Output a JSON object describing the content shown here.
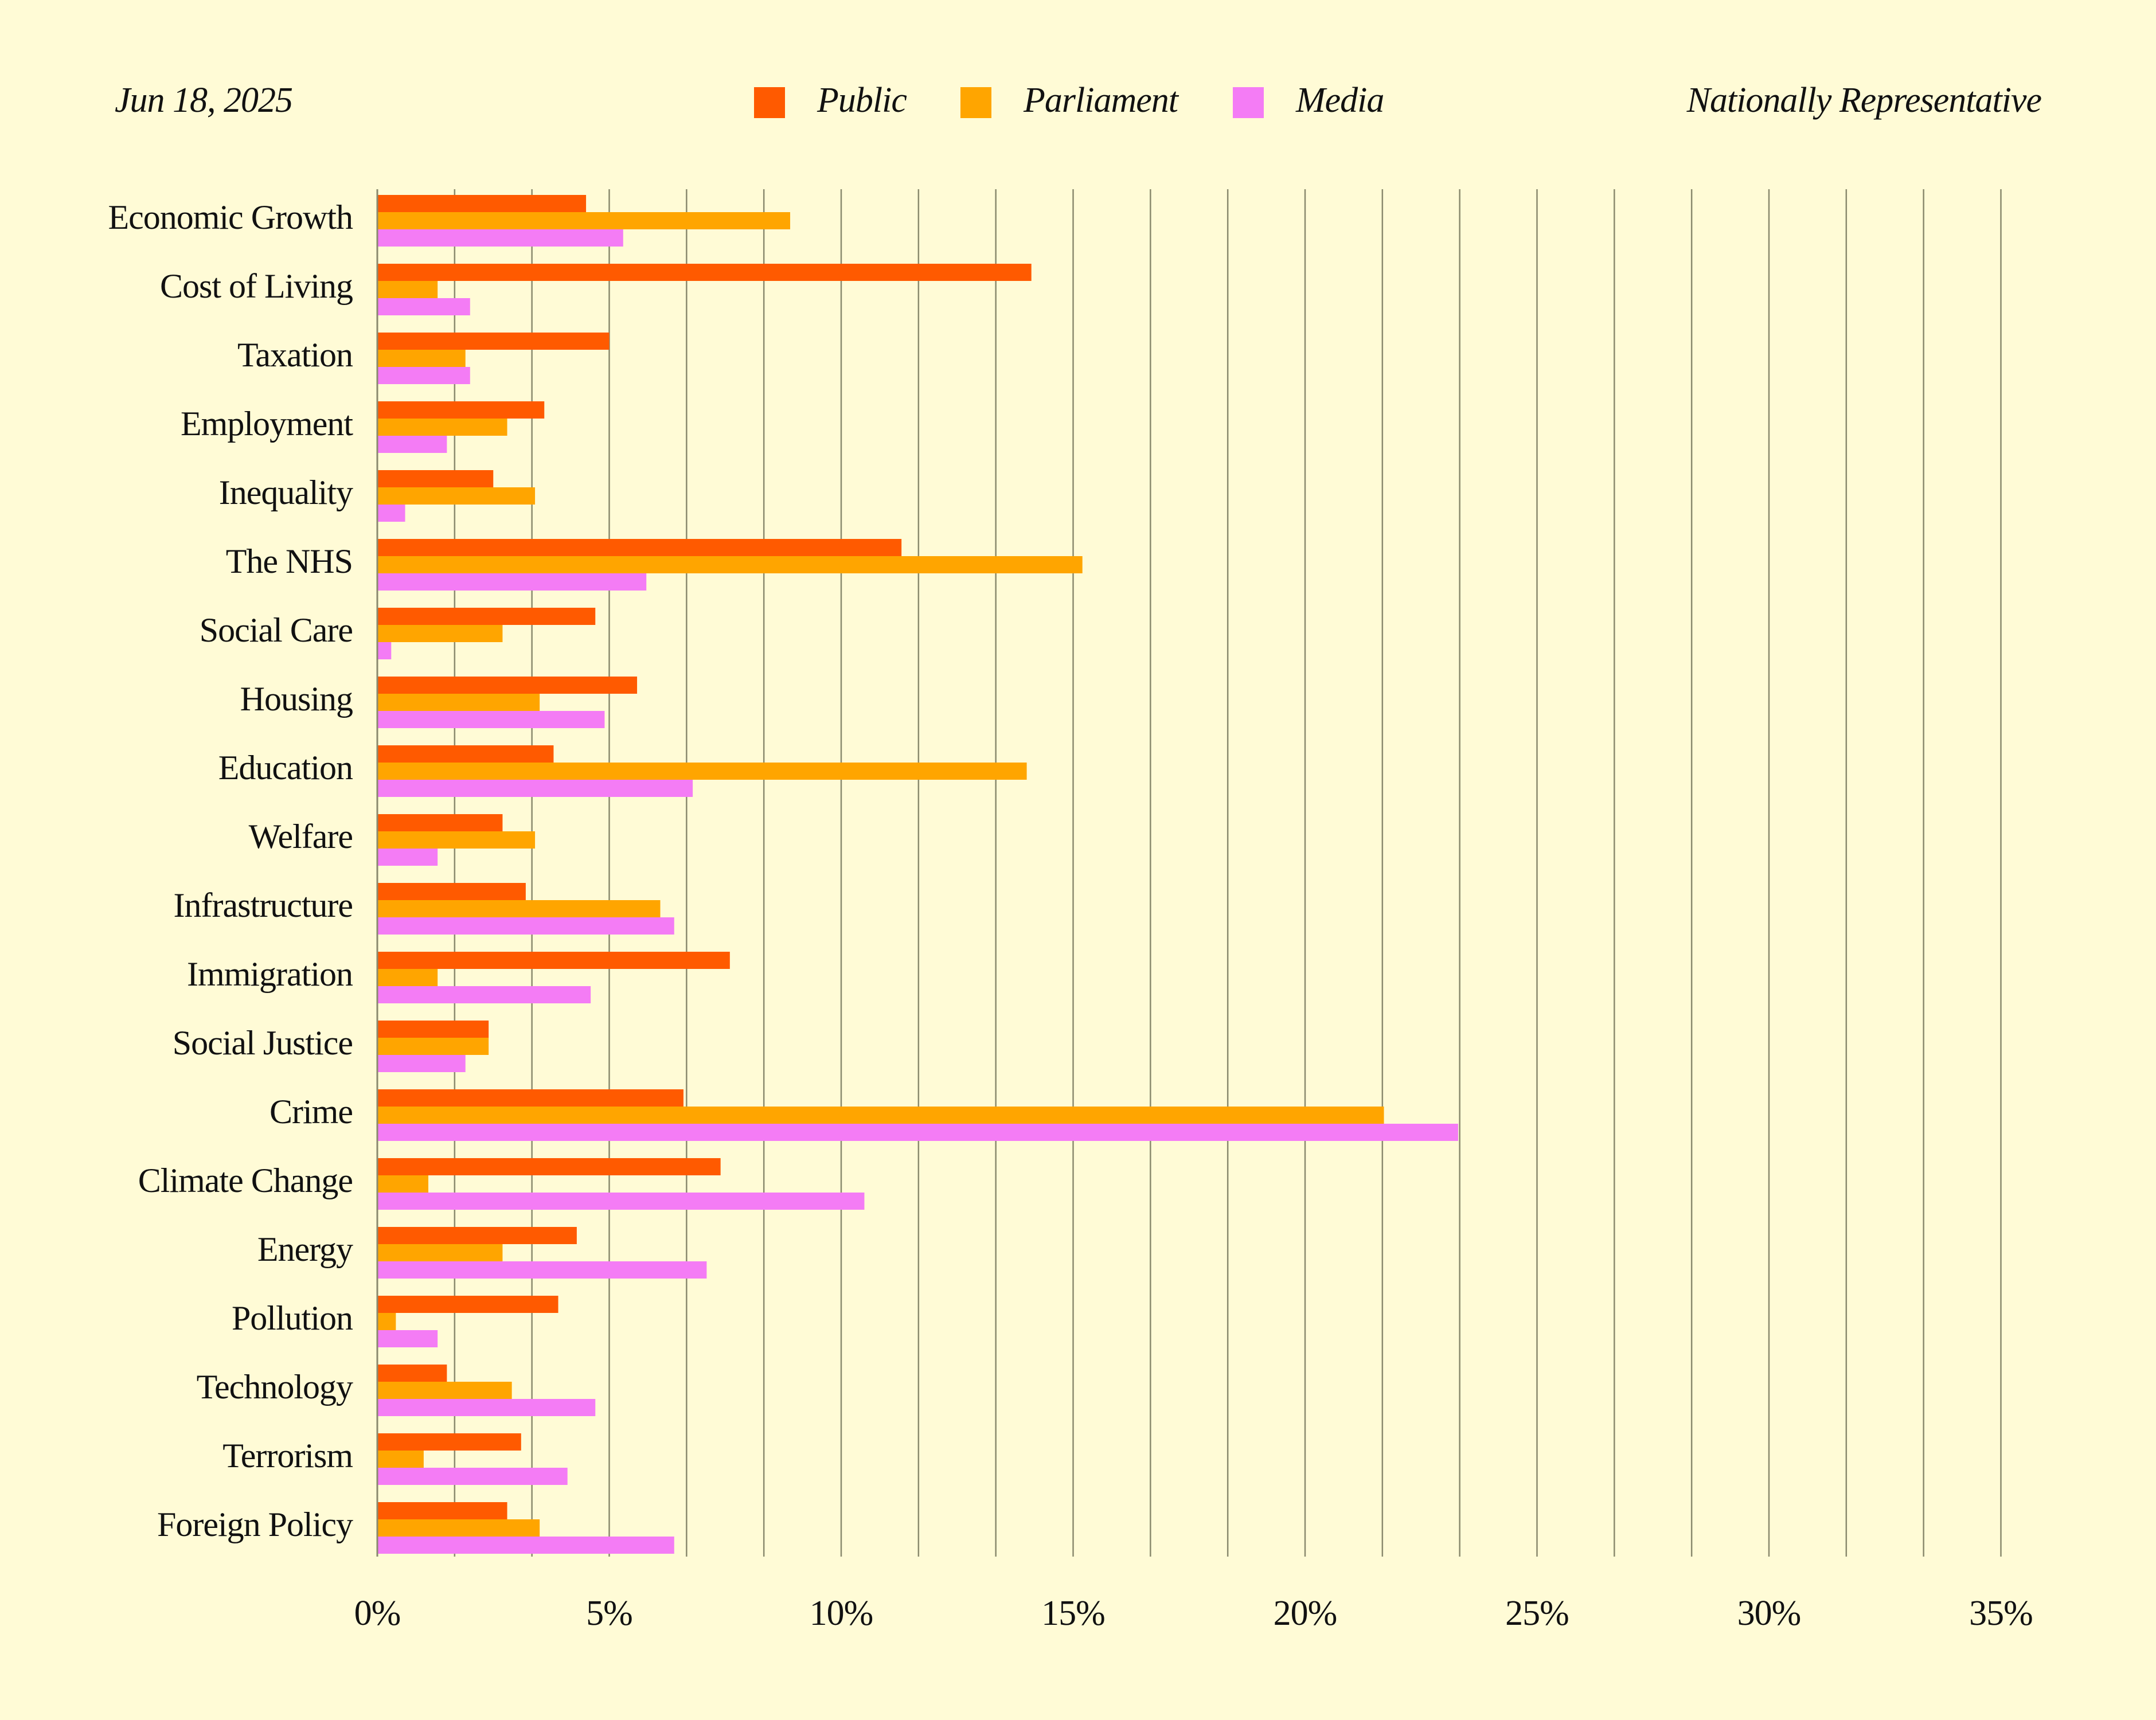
{
  "header": {
    "date": "Jun 18, 2025",
    "sample": "Nationally Representative"
  },
  "colors": {
    "background": "#fffbd6",
    "grid": "#8a8a6e",
    "Public": "#ff5a00",
    "Parliament": "#ffa500",
    "Media": "#f47cf5"
  },
  "legend": [
    {
      "name": "Public",
      "color": "#ff5a00"
    },
    {
      "name": "Parliament",
      "color": "#ffa500"
    },
    {
      "name": "Media",
      "color": "#f47cf5"
    }
  ],
  "chart_data": {
    "type": "bar",
    "orientation": "horizontal",
    "title": "",
    "xlabel": "",
    "ylabel": "",
    "xlim": [
      0,
      35
    ],
    "x_ticks": [
      "0%",
      "5%",
      "10%",
      "15%",
      "20%",
      "25%",
      "30%",
      "35%"
    ],
    "grid": true,
    "legend_position": "top",
    "categories": [
      "Economic Growth",
      "Cost of Living",
      "Taxation",
      "Employment",
      "Inequality",
      "The NHS",
      "Social Care",
      "Housing",
      "Education",
      "Welfare",
      "Infrastructure",
      "Immigration",
      "Social Justice",
      "Crime",
      "Climate Change",
      "Energy",
      "Pollution",
      "Technology",
      "Terrorism",
      "Foreign Policy"
    ],
    "series": [
      {
        "name": "Public",
        "values": [
          4.5,
          14.1,
          5.0,
          3.6,
          2.5,
          11.3,
          4.7,
          5.6,
          3.8,
          2.7,
          3.2,
          7.6,
          2.4,
          6.6,
          7.4,
          4.3,
          3.9,
          1.5,
          3.1,
          2.8
        ]
      },
      {
        "name": "Parliament",
        "values": [
          8.9,
          1.3,
          1.9,
          2.8,
          3.4,
          15.2,
          2.7,
          3.5,
          14.0,
          3.4,
          6.1,
          1.3,
          2.4,
          21.7,
          1.1,
          2.7,
          0.4,
          2.9,
          1.0,
          3.5
        ]
      },
      {
        "name": "Media",
        "values": [
          5.3,
          2.0,
          2.0,
          1.5,
          0.6,
          5.8,
          0.3,
          4.9,
          6.8,
          1.3,
          6.4,
          4.6,
          1.9,
          23.3,
          10.5,
          7.1,
          1.3,
          4.7,
          4.1,
          6.4
        ]
      }
    ]
  }
}
